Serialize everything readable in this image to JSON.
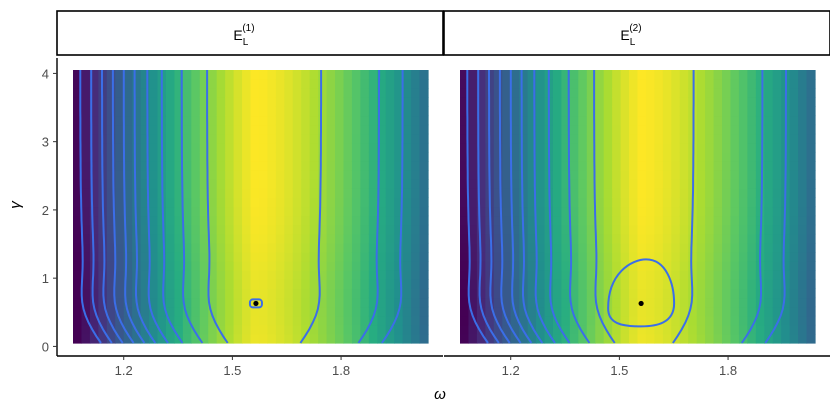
{
  "chart_data": {
    "type": "heatmap",
    "subtype": "faceted contour heatmap",
    "x_label": "ω",
    "y_label": "γ",
    "x_range": [
      1.06,
      2.04
    ],
    "y_range": [
      0.05,
      4.05
    ],
    "x_ticks": [
      1.2,
      1.5,
      1.8
    ],
    "x_tick_labels": [
      "1.2",
      "1.5",
      "1.8"
    ],
    "y_ticks": [
      0,
      1,
      2,
      3,
      4
    ],
    "y_tick_labels": [
      "0",
      "1",
      "2",
      "3",
      "4"
    ],
    "grid": false,
    "colorscale": "viridis",
    "contour_color": "#3b6ee8",
    "panels": [
      {
        "strip_base": "E",
        "strip_sub": "L",
        "strip_sup": "(1)",
        "optimum": {
          "x": 1.565,
          "y": 0.63
        },
        "peak_x": 1.565,
        "contour_levels_x": [
          1.08,
          1.11,
          1.14,
          1.17,
          1.2,
          1.23,
          1.265,
          1.305,
          1.36,
          1.43,
          1.745,
          1.905,
          1.97
        ]
      },
      {
        "strip_base": "E",
        "strip_sub": "L",
        "strip_sup": "(2)",
        "optimum": {
          "x": 1.56,
          "y": 0.63
        },
        "peak_x": 1.56,
        "contour_levels_x": [
          1.08,
          1.11,
          1.14,
          1.17,
          1.2,
          1.23,
          1.265,
          1.305,
          1.36,
          1.43,
          1.705,
          1.895,
          1.96
        ]
      }
    ]
  }
}
